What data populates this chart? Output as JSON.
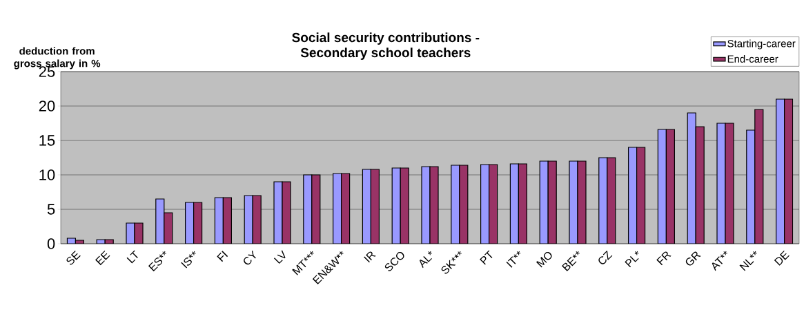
{
  "chart_data": {
    "type": "bar",
    "title": "Social security contributions -\nSecondary school teachers",
    "ylabel": "deduction from gross salary in %",
    "categories": [
      "SE",
      "EE",
      "LT",
      "ES**",
      "IS**",
      "FI",
      "CY",
      "LV",
      "MT***",
      "EN&W**",
      "IR",
      "SCO",
      "AL*",
      "SK***",
      "PT",
      "IT**",
      "MO",
      "BE**",
      "CZ",
      "PL*",
      "FR",
      "GR",
      "AT**",
      "NL**",
      "DE"
    ],
    "series": [
      {
        "name": "Starting-career",
        "color": "#9999ff",
        "values": [
          0.8,
          0.6,
          3,
          6.5,
          6,
          6.7,
          7,
          9,
          10,
          10.2,
          10.8,
          11,
          11.2,
          11.4,
          11.5,
          11.6,
          12,
          12,
          12.5,
          14,
          16.6,
          19,
          17.5,
          16.5,
          21
        ]
      },
      {
        "name": "End-career",
        "color": "#993366",
        "values": [
          0.5,
          0.6,
          3,
          4.5,
          6,
          6.7,
          7,
          9,
          10,
          10.2,
          10.8,
          11,
          11.2,
          11.4,
          11.5,
          11.6,
          12,
          12,
          12.5,
          14,
          16.6,
          17,
          17.5,
          19.5,
          21
        ]
      }
    ],
    "ylim": [
      0,
      25
    ],
    "yticks": [
      0,
      5,
      10,
      15,
      20,
      25
    ],
    "grid": "y",
    "legend": "top right"
  }
}
